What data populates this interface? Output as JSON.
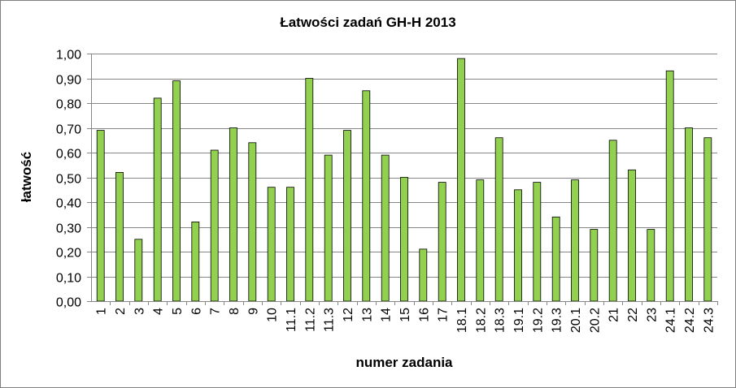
{
  "chart_data": {
    "type": "bar",
    "title": "Łatwości zadań GH-H 2013",
    "xlabel": "numer zadania",
    "ylabel": "łatwość",
    "ylim": [
      0,
      1
    ],
    "ytick_labels": [
      "0,00",
      "0,10",
      "0,20",
      "0,30",
      "0,40",
      "0,50",
      "0,60",
      "0,70",
      "0,80",
      "0,90",
      "1,00"
    ],
    "grid": true,
    "legend": "none",
    "bar_color": "#92d050",
    "bar_edge_color": "#000000",
    "categories": [
      "1",
      "2",
      "3",
      "4",
      "5",
      "6",
      "7",
      "8",
      "9",
      "10",
      "11.1",
      "11.2",
      "11.3",
      "12",
      "13",
      "14",
      "15",
      "16",
      "17",
      "18.1",
      "18.2",
      "18.3",
      "19.1",
      "19.2",
      "19.3",
      "20.1",
      "20.2",
      "21",
      "22",
      "23",
      "24.1",
      "24.2",
      "24.3"
    ],
    "values": [
      0.69,
      0.52,
      0.25,
      0.82,
      0.89,
      0.32,
      0.61,
      0.7,
      0.64,
      0.46,
      0.46,
      0.9,
      0.59,
      0.69,
      0.85,
      0.59,
      0.5,
      0.21,
      0.48,
      0.98,
      0.49,
      0.66,
      0.45,
      0.48,
      0.34,
      0.49,
      0.29,
      0.65,
      0.53,
      0.29,
      0.93,
      0.7,
      0.66
    ]
  }
}
